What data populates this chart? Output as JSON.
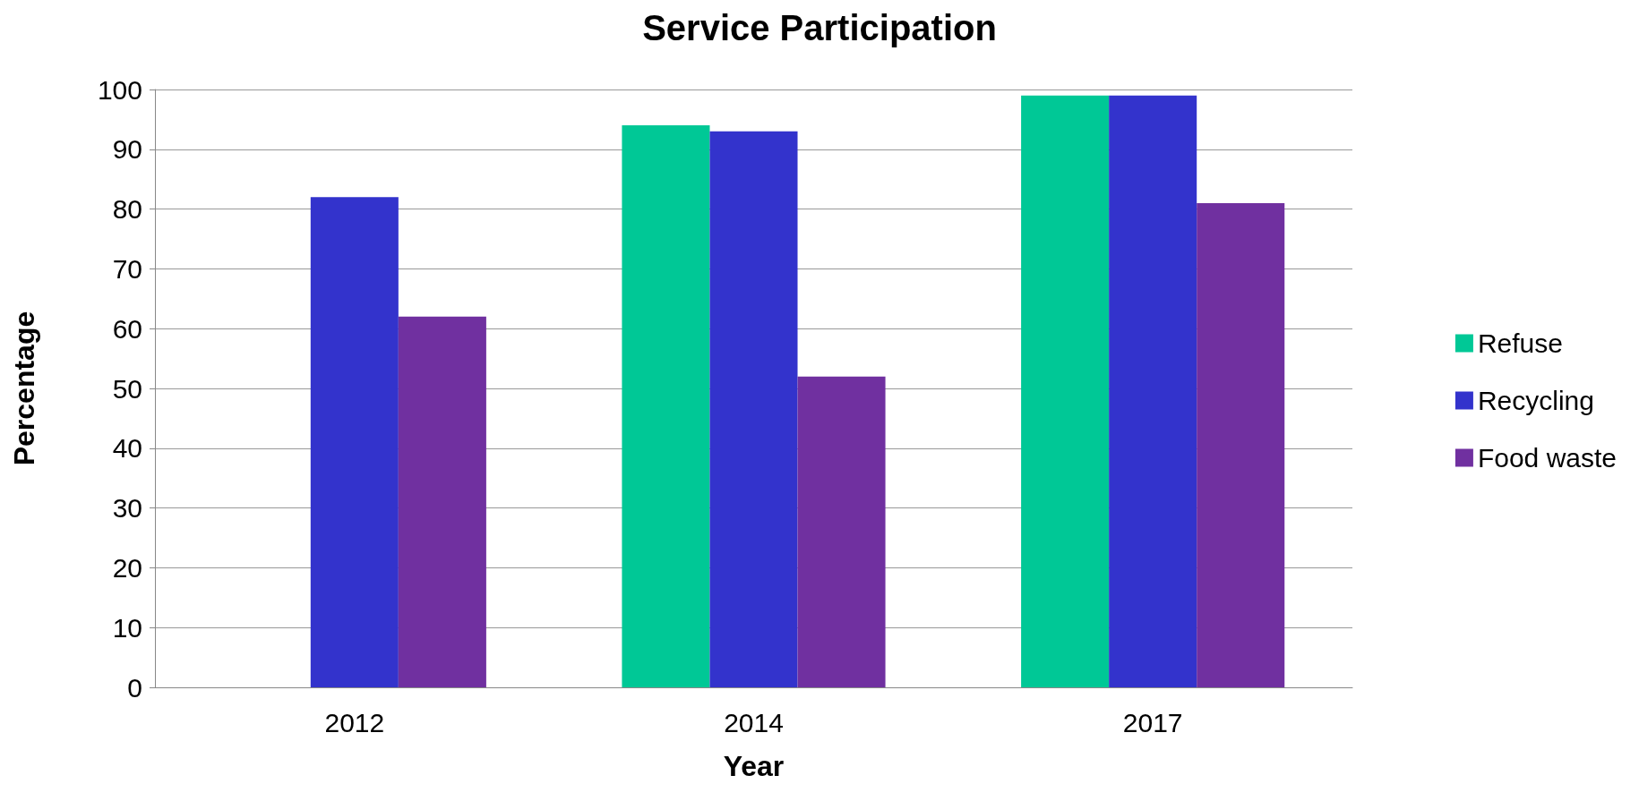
{
  "chart_data": {
    "type": "bar",
    "title": "Service Participation",
    "xlabel": "Year",
    "ylabel": "Percentage",
    "categories": [
      "2012",
      "2014",
      "2017"
    ],
    "series": [
      {
        "name": "Refuse",
        "color": "#00c896",
        "values": [
          null,
          94,
          99
        ]
      },
      {
        "name": "Recycling",
        "color": "#3333cc",
        "values": [
          82,
          93,
          99
        ]
      },
      {
        "name": "Food waste",
        "color": "#7030a0",
        "values": [
          62,
          52,
          81
        ]
      }
    ],
    "ylim": [
      0,
      100
    ],
    "yticks": [
      0,
      10,
      20,
      30,
      40,
      50,
      60,
      70,
      80,
      90,
      100
    ],
    "grid": "y",
    "legend": "right"
  }
}
